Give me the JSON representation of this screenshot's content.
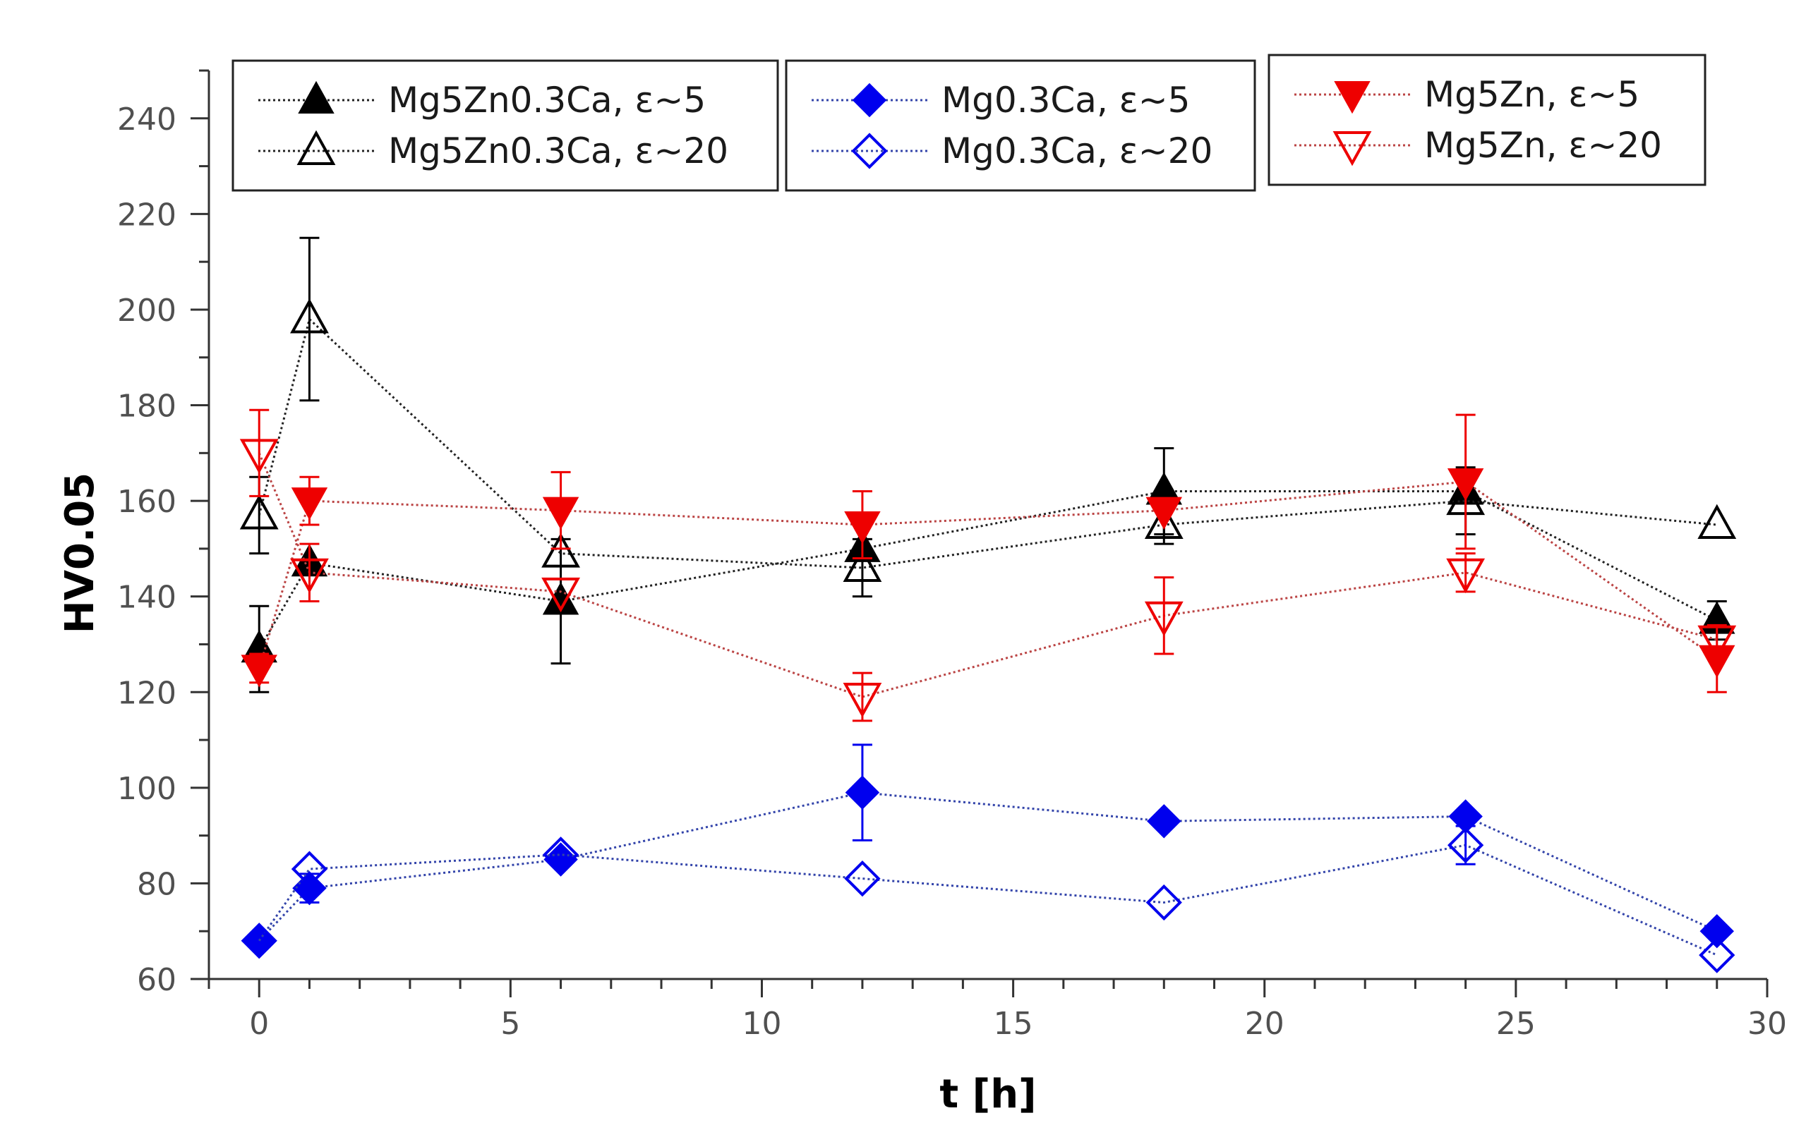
{
  "chart_data": {
    "type": "line",
    "title": "",
    "xlabel": "t [h]",
    "ylabel": "HV0.05",
    "xlim": [
      -1,
      30
    ],
    "ylim": [
      60,
      250
    ],
    "xticks": [
      0,
      5,
      10,
      15,
      20,
      25,
      30
    ],
    "yticks": [
      60,
      80,
      100,
      120,
      140,
      160,
      180,
      200,
      220,
      240
    ],
    "series": [
      {
        "name": "Mg5Zn0.3Ca, ε~5",
        "color": "#000000",
        "marker": "triangle-up",
        "filled": true,
        "x": [
          0,
          1,
          6,
          12,
          18,
          24,
          29
        ],
        "y": [
          129,
          147,
          139,
          150,
          162,
          162,
          135
        ],
        "err": [
          9,
          0,
          13,
          0,
          9,
          0,
          4
        ]
      },
      {
        "name": "Mg5Zn0.3Ca, ε~20",
        "color": "#000000",
        "marker": "triangle-up",
        "filled": false,
        "x": [
          0,
          1,
          6,
          12,
          18,
          24,
          29
        ],
        "y": [
          157,
          198,
          149,
          146,
          155,
          160,
          155
        ],
        "err": [
          8,
          17,
          0,
          6,
          4,
          7,
          0
        ]
      },
      {
        "name": "Mg0.3Ca, ε~5",
        "color": "#0000ee",
        "marker": "diamond",
        "filled": true,
        "x": [
          0,
          1,
          6,
          12,
          18,
          24,
          29
        ],
        "y": [
          68,
          79,
          85,
          99,
          93,
          94,
          70
        ],
        "err": [
          0,
          3,
          0,
          10,
          0,
          0,
          0
        ]
      },
      {
        "name": "Mg0.3Ca, ε~20",
        "color": "#0000ee",
        "marker": "diamond",
        "filled": false,
        "x": [
          0,
          1,
          6,
          12,
          18,
          24,
          29
        ],
        "y": [
          68,
          83,
          86,
          81,
          76,
          88,
          65
        ],
        "err": [
          0,
          0,
          0,
          0,
          0,
          4,
          0
        ]
      },
      {
        "name": "Mg5Zn, ε~5",
        "color": "#ee0000",
        "marker": "triangle-down",
        "filled": true,
        "x": [
          0,
          1,
          6,
          12,
          18,
          24,
          29
        ],
        "y": [
          125,
          160,
          158,
          155,
          158,
          164,
          127
        ],
        "err": [
          3,
          5,
          8,
          7,
          0,
          14,
          7
        ]
      },
      {
        "name": "Mg5Zn, ε~20",
        "color": "#ee0000",
        "marker": "triangle-down",
        "filled": false,
        "x": [
          0,
          1,
          6,
          12,
          18,
          24,
          29
        ],
        "y": [
          170,
          145,
          141,
          119,
          136,
          145,
          131
        ],
        "err": [
          9,
          6,
          0,
          5,
          8,
          4,
          0
        ]
      }
    ],
    "legend_groups": [
      [
        0,
        1
      ],
      [
        2,
        3
      ],
      [
        4,
        5
      ]
    ]
  }
}
